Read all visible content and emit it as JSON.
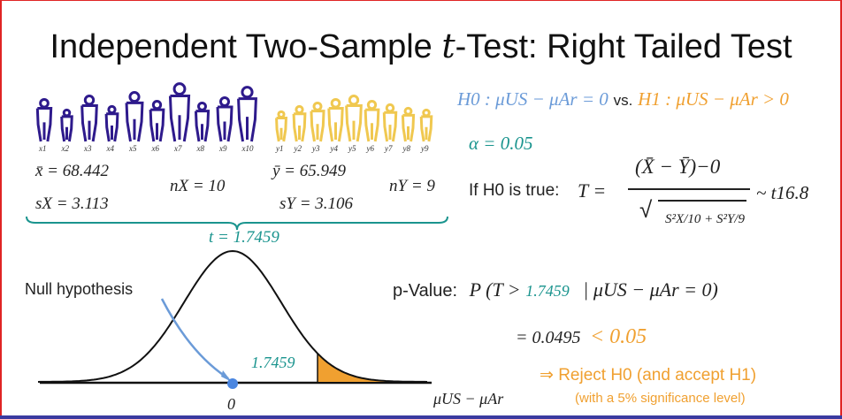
{
  "title": {
    "prefix": "Independent Two-Sample ",
    "t": "t",
    "suffix": "-Test: Right Tailed Test"
  },
  "sample_x": {
    "labels": [
      "x1",
      "x2",
      "x3",
      "x4",
      "x5",
      "x6",
      "x7",
      "x8",
      "x9",
      "x10"
    ],
    "mean": "x̄ = 68.442",
    "sd": "sX = 3.113",
    "n": "nX = 10",
    "color": "#2e1a8c"
  },
  "sample_y": {
    "labels": [
      "y1",
      "y2",
      "y3",
      "y4",
      "y5",
      "y6",
      "y7",
      "y8",
      "y9"
    ],
    "mean": "ȳ = 65.949",
    "sd": "sY = 3.106",
    "n": "nY = 9",
    "color": "#f0c850"
  },
  "t_stat": "t = 1.7459",
  "hypotheses": {
    "h0": "H0 : μUS − μAr = 0",
    "vs": "vs.",
    "h1": "H1 : μUS − μAr > 0"
  },
  "alpha": "α = 0.05",
  "test_statistic": {
    "lead": "If H0 is true:",
    "lhs": "T =",
    "numerator": "(X̄ − Ȳ)−0",
    "denominator": "S²X/10 + S²Y/9",
    "df": "~ t16.8"
  },
  "pvalue": {
    "label": "p-Value:",
    "expr_prefix": "P (T >",
    "value": "1.7459",
    "expr_suffix": "| μUS − μAr = 0)",
    "result": "= 0.0495",
    "compare": "< 0.05"
  },
  "conclusion": {
    "line1": "⇒ Reject H0 (and accept H1)",
    "line2": "(with a 5% significance level)"
  },
  "plot": {
    "null_label": "Null hypothesis",
    "cut_label": "1.7459",
    "zero_label": "0",
    "axis_label": "μUS − μAr",
    "cutoff": 1.7459,
    "curve_color": "#111111",
    "shade_color": "#f0a030",
    "arrow_color": "#6b9bd8"
  }
}
